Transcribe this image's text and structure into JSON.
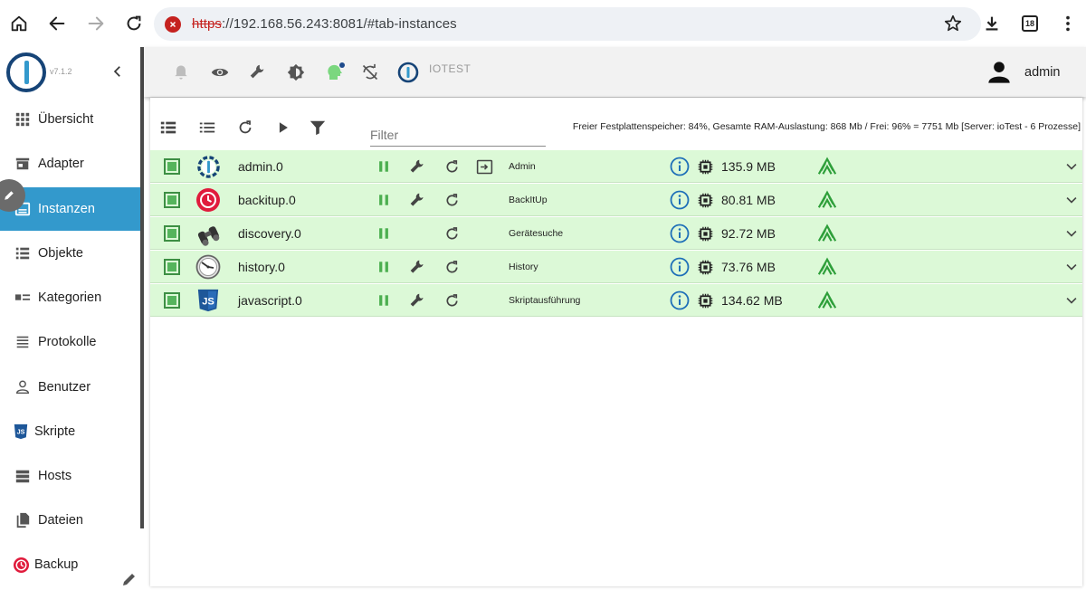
{
  "browser": {
    "url_scheme": "https",
    "url_rest": "://192.168.56.243:8081/#tab-instances",
    "tab_count": "18"
  },
  "sidebar": {
    "version": "v7.1.2",
    "items": [
      {
        "label": "Übersicht",
        "icon": "apps-icon"
      },
      {
        "label": "Adapter",
        "icon": "store-icon"
      },
      {
        "label": "Instanzen",
        "icon": "instances-icon",
        "active": true
      },
      {
        "label": "Objekte",
        "icon": "list-icon"
      },
      {
        "label": "Kategorien",
        "icon": "categories-icon"
      },
      {
        "label": "Protokolle",
        "icon": "logs-icon"
      },
      {
        "label": "Benutzer",
        "icon": "user-icon"
      },
      {
        "label": "Skripte",
        "icon": "js-icon"
      },
      {
        "label": "Hosts",
        "icon": "hosts-icon"
      },
      {
        "label": "Dateien",
        "icon": "files-icon"
      },
      {
        "label": "Backup",
        "icon": "backup-icon"
      }
    ]
  },
  "toolbar": {
    "host": "IOTEST",
    "user": "admin"
  },
  "content": {
    "filter_placeholder": "Filter",
    "stats": "Freier Festplattenspeicher: 84%, Gesamte RAM-Auslastung: 868 Mb / Frei: 96% = 7751 Mb [Server: ioTest - 6 Prozesse]",
    "instances": [
      {
        "name": "admin.0",
        "title": "Admin",
        "memory": "135.9 MB",
        "has_settings": true,
        "has_link": true,
        "icon": "iobroker-admin-icon"
      },
      {
        "name": "backitup.0",
        "title": "BackItUp",
        "memory": "80.81 MB",
        "has_settings": true,
        "has_link": false,
        "icon": "backitup-icon"
      },
      {
        "name": "discovery.0",
        "title": "Gerätesuche",
        "memory": "92.72 MB",
        "has_settings": false,
        "has_link": false,
        "icon": "binoculars-icon"
      },
      {
        "name": "history.0",
        "title": "History",
        "memory": "73.76 MB",
        "has_settings": true,
        "has_link": false,
        "icon": "history-clock-icon"
      },
      {
        "name": "javascript.0",
        "title": "Skriptausführung",
        "memory": "134.62 MB",
        "has_settings": true,
        "has_link": false,
        "icon": "javascript-icon"
      }
    ]
  },
  "colors": {
    "accent": "#3399cc",
    "row_ok": "#dcf9d7",
    "running": "#4caf50"
  }
}
